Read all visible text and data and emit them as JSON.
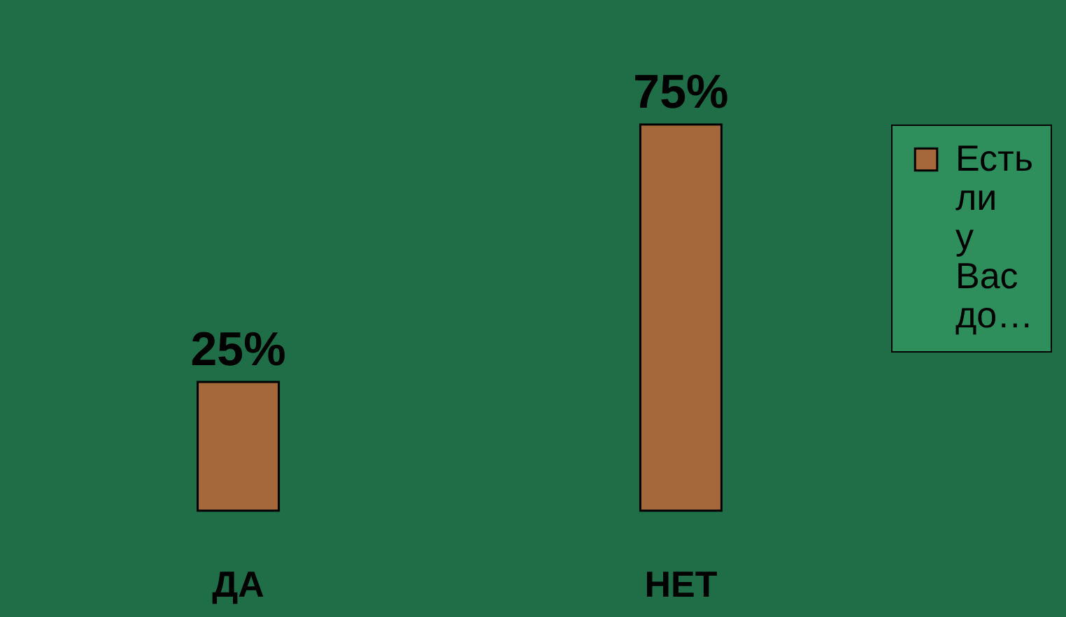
{
  "chart_data": {
    "type": "bar",
    "categories": [
      "ДА",
      "НЕТ"
    ],
    "series": [
      {
        "name": "Есть ли у Вас до…",
        "color": "#a5683a",
        "values": [
          25,
          75
        ],
        "value_labels": [
          "25%",
          "75%"
        ]
      }
    ],
    "legend": "top right",
    "grid": false
  }
}
